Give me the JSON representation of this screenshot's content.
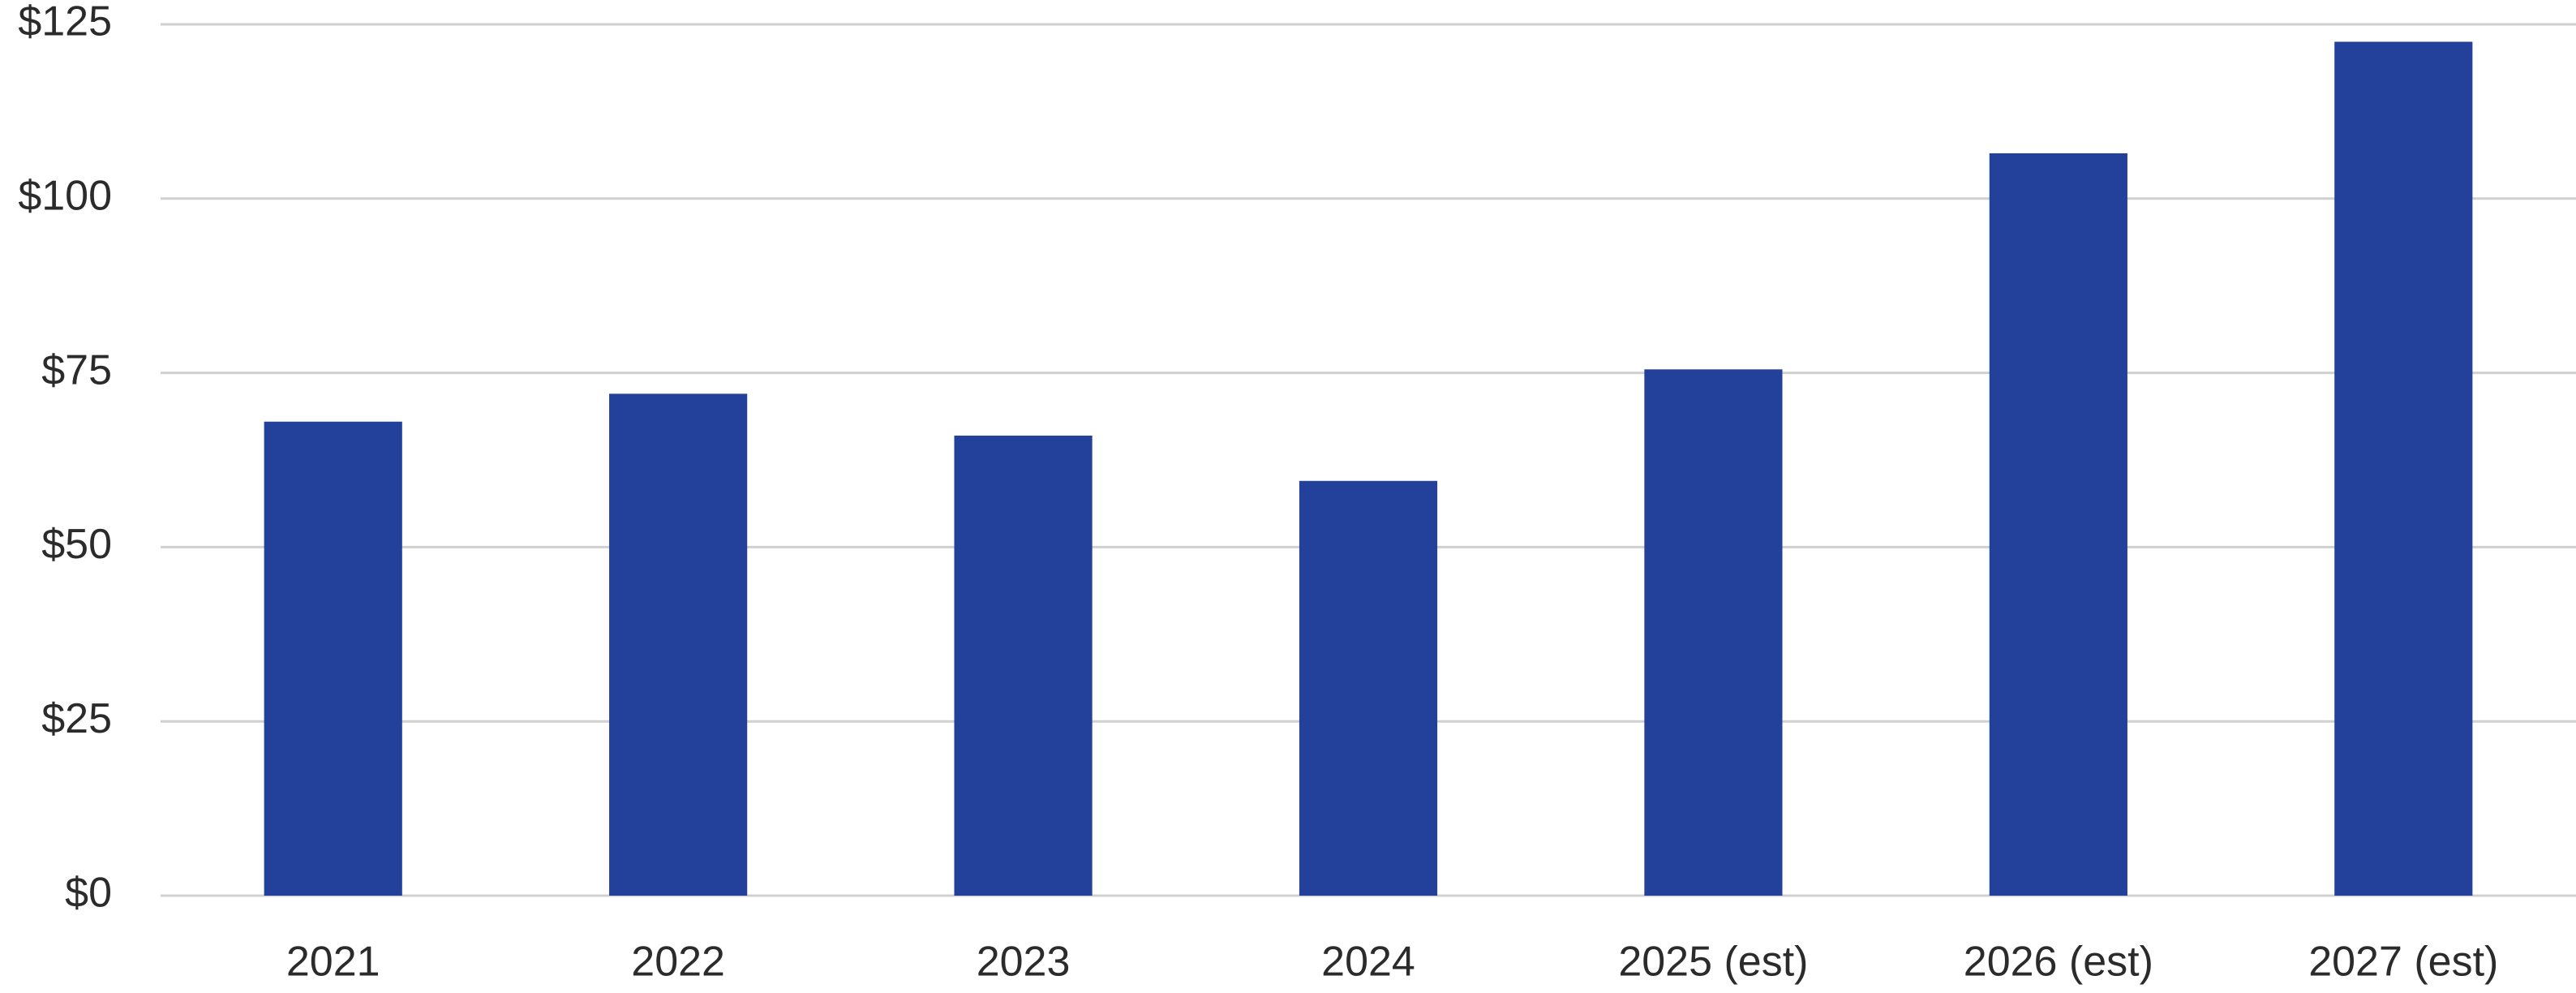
{
  "chart_data": {
    "type": "bar",
    "categories": [
      "2021",
      "2022",
      "2023",
      "2024",
      "2025 (est)",
      "2026 (est)",
      "2027 (est)"
    ],
    "values": [
      68,
      72,
      66,
      59.5,
      75.5,
      106.5,
      122.5
    ],
    "color": "#23419a",
    "ylim": [
      0,
      125
    ],
    "yticks": [
      {
        "value": 0,
        "label": "$0"
      },
      {
        "value": 25,
        "label": "$25"
      },
      {
        "value": 50,
        "label": "$50"
      },
      {
        "value": 75,
        "label": "$75"
      },
      {
        "value": 100,
        "label": "$100"
      },
      {
        "value": 125,
        "label": "$125"
      }
    ],
    "grid": true
  }
}
